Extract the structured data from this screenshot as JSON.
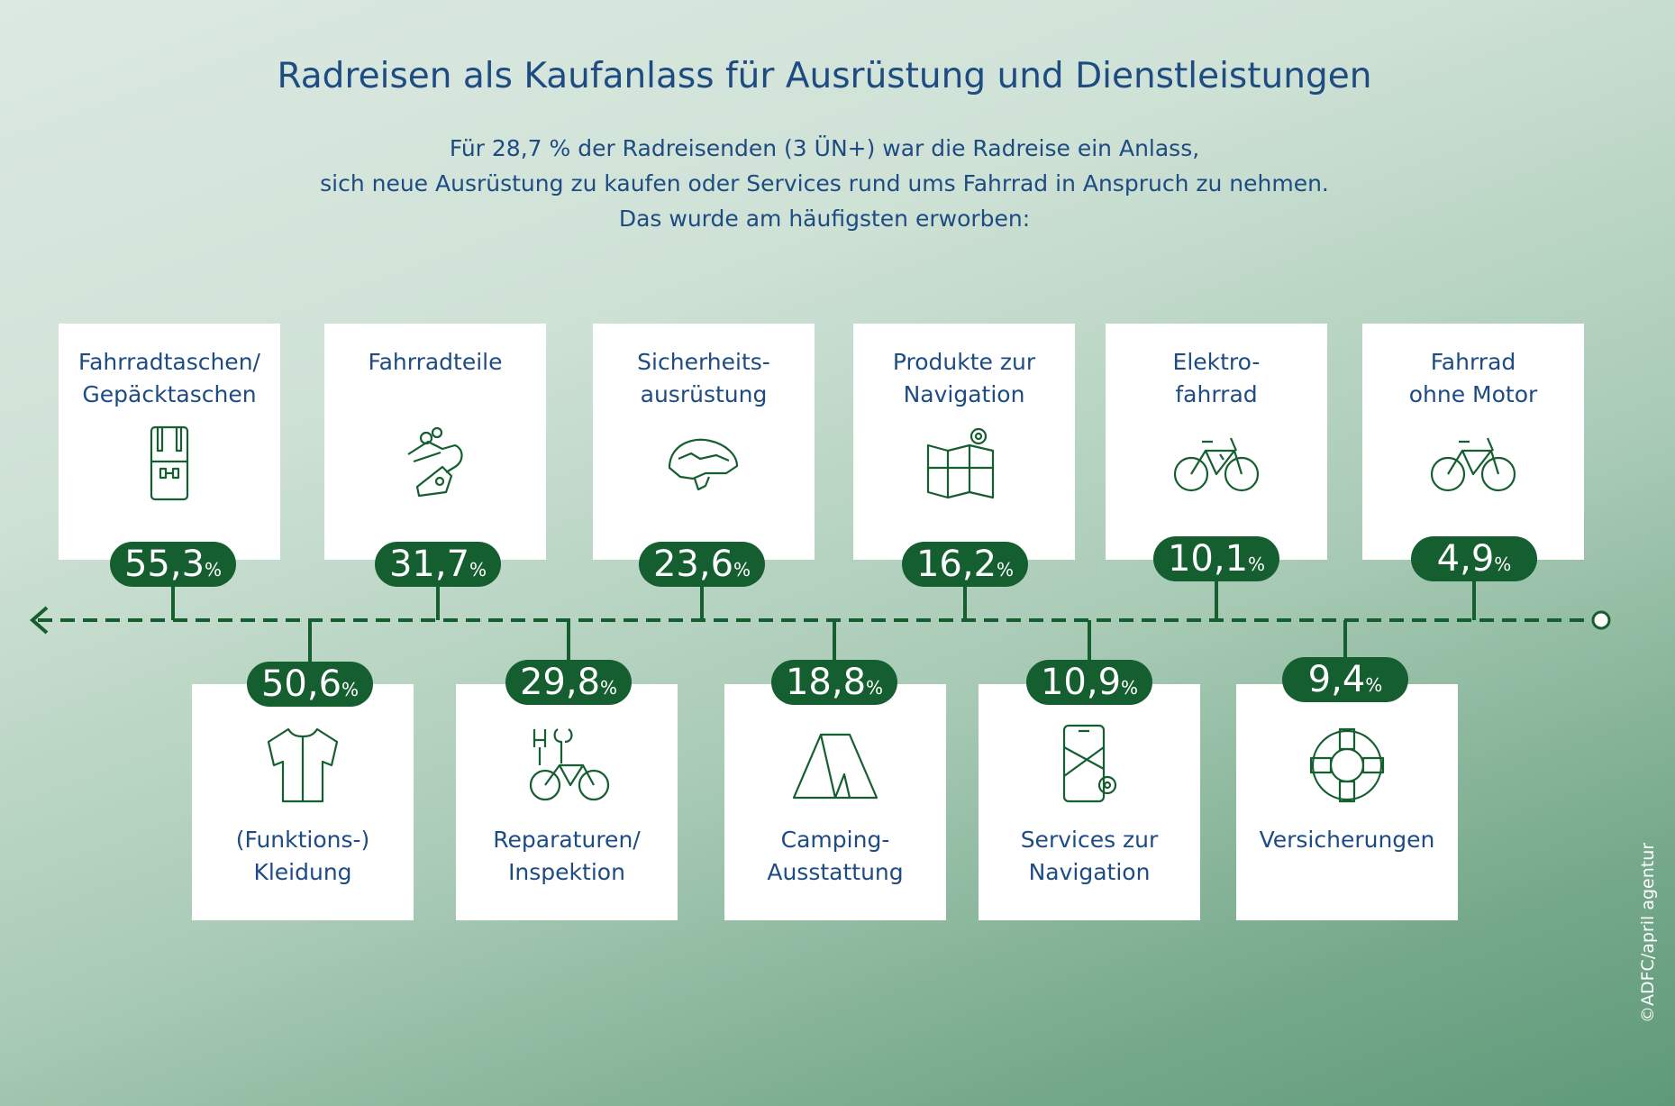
{
  "title": "Radreisen als Kaufanlass für Ausrüstung und Dienstleistungen",
  "subtitle": [
    "Für 28,7 % der Radreisenden (3 ÜN+) war die Radreise ein Anlass,",
    "sich neue Ausrüstung zu kaufen oder Services rund ums Fahrrad in Anspruch zu nehmen.",
    "Das wurde am häufigsten erworben:"
  ],
  "credit": "©ADFC/april agentur",
  "colors": {
    "accent": "#145e30",
    "text": "#1d4b82"
  },
  "percent_sign": "%",
  "top": [
    {
      "label": [
        "Fahrradtaschen/",
        "Gepäcktaschen"
      ],
      "value": "55,3",
      "icon": "bag-icon"
    },
    {
      "label": [
        "Fahrradteile",
        ""
      ],
      "value": "31,7",
      "icon": "derailleur-icon"
    },
    {
      "label": [
        "Sicherheits-",
        "ausrüstung"
      ],
      "value": "23,6",
      "icon": "helmet-icon"
    },
    {
      "label": [
        "Produkte zur",
        "Navigation"
      ],
      "value": "16,2",
      "icon": "map-icon"
    },
    {
      "label": [
        "Elektro-",
        "fahrrad"
      ],
      "value": "10,1",
      "icon": "ebike-icon"
    },
    {
      "label": [
        "Fahrrad",
        "ohne Motor"
      ],
      "value": "4,9",
      "icon": "bicycle-icon"
    }
  ],
  "bottom": [
    {
      "label": [
        "(Funktions-)",
        "Kleidung"
      ],
      "value": "50,6",
      "icon": "jersey-icon"
    },
    {
      "label": [
        "Reparaturen/",
        "Inspektion"
      ],
      "value": "29,8",
      "icon": "repair-icon"
    },
    {
      "label": [
        "Camping-",
        "Ausstattung"
      ],
      "value": "18,8",
      "icon": "tent-icon"
    },
    {
      "label": [
        "Services zur",
        "Navigation"
      ],
      "value": "10,9",
      "icon": "phone-navigation-icon"
    },
    {
      "label": [
        "Versicherungen",
        ""
      ],
      "value": "9,4",
      "icon": "lifebuoy-icon"
    }
  ],
  "chart_data": {
    "type": "table",
    "title": "Radreisen als Kaufanlass für Ausrüstung und Dienstleistungen",
    "categories": [
      "Fahrradtaschen/Gepäcktaschen",
      "(Funktions-)Kleidung",
      "Fahrradteile",
      "Reparaturen/Inspektion",
      "Sicherheitsausrüstung",
      "Camping-Ausstattung",
      "Produkte zur Navigation",
      "Services zur Navigation",
      "Elektrofahrrad",
      "Versicherungen",
      "Fahrrad ohne Motor"
    ],
    "values": [
      55.3,
      50.6,
      31.7,
      29.8,
      23.6,
      18.8,
      16.2,
      10.9,
      10.1,
      9.4,
      4.9
    ],
    "unit": "%"
  }
}
